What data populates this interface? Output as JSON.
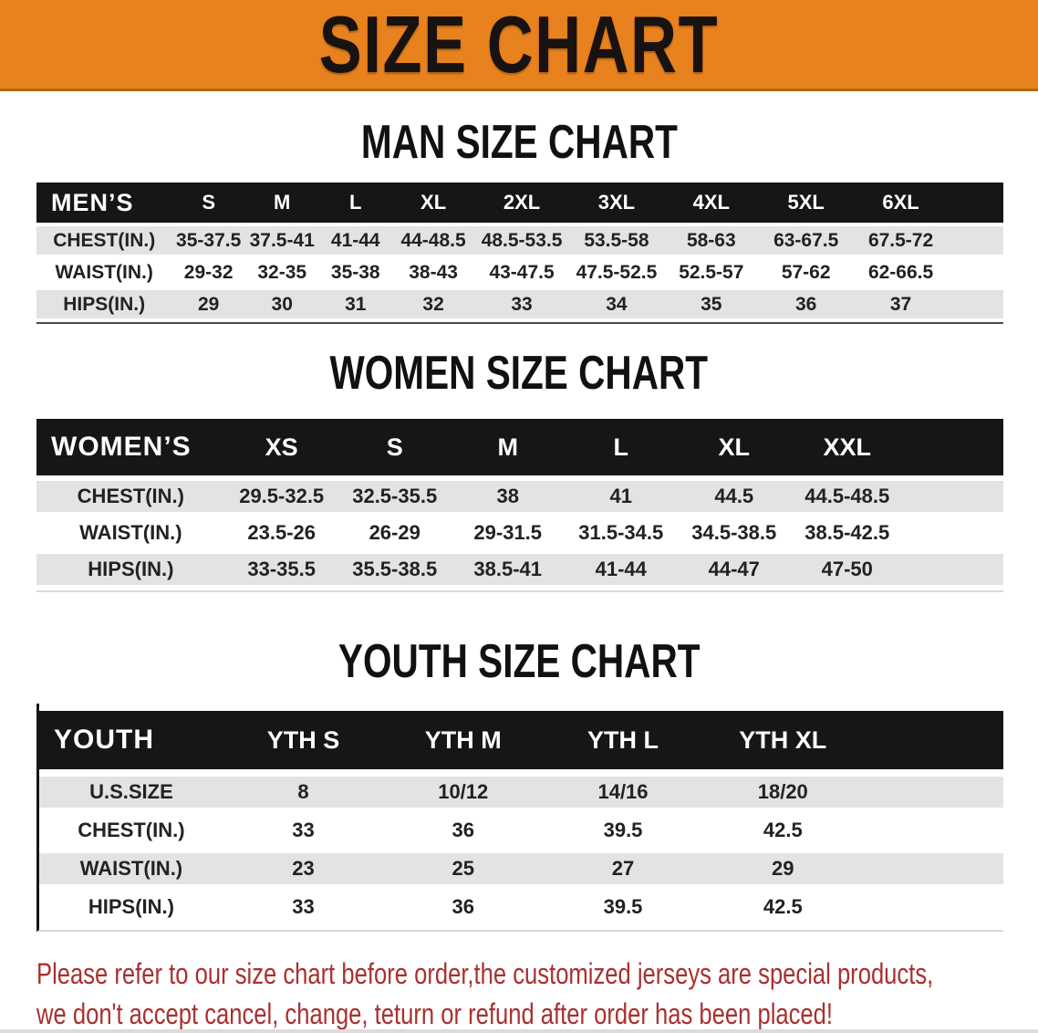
{
  "banner": {
    "title": "SIZE CHART"
  },
  "colors": {
    "banner_orange": "#E8821E",
    "table_header_black": "#161616",
    "row_gray": "#e3e3e3",
    "disclaimer_red": "#A93030"
  },
  "men": {
    "section_title": "MAN SIZE CHART",
    "header": [
      "MEN’S",
      "S",
      "M",
      "L",
      "XL",
      "2XL",
      "3XL",
      "4XL",
      "5XL",
      "6XL"
    ],
    "rows": [
      [
        "CHEST(IN.)",
        "35-37.5",
        "37.5-41",
        "41-44",
        "44-48.5",
        "48.5-53.5",
        "53.5-58",
        "58-63",
        "63-67.5",
        "67.5-72"
      ],
      [
        "WAIST(IN.)",
        "29-32",
        "32-35",
        "35-38",
        "38-43",
        "43-47.5",
        "47.5-52.5",
        "52.5-57",
        "57-62",
        "62-66.5"
      ],
      [
        "HIPS(IN.)",
        "29",
        "30",
        "31",
        "32",
        "33",
        "34",
        "35",
        "36",
        "37"
      ]
    ]
  },
  "women": {
    "section_title": "WOMEN SIZE CHART",
    "header": [
      "WOMEN’S",
      "XS",
      "S",
      "M",
      "L",
      "XL",
      "XXL"
    ],
    "rows": [
      [
        "CHEST(IN.)",
        "29.5-32.5",
        "32.5-35.5",
        "38",
        "41",
        "44.5",
        "44.5-48.5"
      ],
      [
        "WAIST(IN.)",
        "23.5-26",
        "26-29",
        "29-31.5",
        "31.5-34.5",
        "34.5-38.5",
        "38.5-42.5"
      ],
      [
        "HIPS(IN.)",
        "33-35.5",
        "35.5-38.5",
        "38.5-41",
        "41-44",
        "44-47",
        "47-50"
      ]
    ]
  },
  "youth": {
    "section_title": "YOUTH SIZE CHART",
    "header": [
      "YOUTH",
      "YTH S",
      "YTH M",
      "YTH L",
      "YTH XL"
    ],
    "rows": [
      [
        "U.S.SIZE",
        "8",
        "10/12",
        "14/16",
        "18/20"
      ],
      [
        "CHEST(IN.)",
        "33",
        "36",
        "39.5",
        "42.5"
      ],
      [
        "WAIST(IN.)",
        "23",
        "25",
        "27",
        "29"
      ],
      [
        "HIPS(IN.)",
        "33",
        "36",
        "39.5",
        "42.5"
      ]
    ]
  },
  "disclaimer": {
    "line1": "Please refer to our size chart before order,the customized jerseys are special products,",
    "line2": "we don't accept cancel, change, teturn or refund after order has been placed!"
  }
}
